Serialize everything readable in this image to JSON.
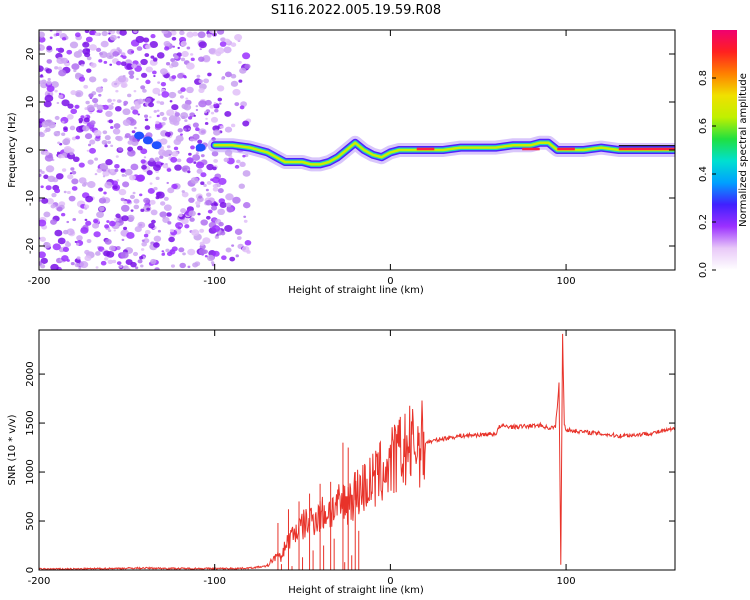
{
  "title": "S116.2022.005.19.59.R08",
  "chart_data": [
    {
      "type": "heatmap",
      "xlabel": "Height of straight line (km)",
      "ylabel": "Frequency (Hz)",
      "xlim": [
        -200,
        162
      ],
      "ylim": [
        -25,
        25
      ],
      "xticks": [
        -200,
        -100,
        0,
        100
      ],
      "yticks": [
        -20,
        -10,
        0,
        10,
        20
      ],
      "colorbar": {
        "label": "Normalized spectral amplitude",
        "range": [
          0,
          1
        ],
        "ticks": [
          0.0,
          0.2,
          0.4,
          0.6,
          0.8
        ],
        "colors": [
          "#ffffff",
          "#e8c8f8",
          "#9b30ff",
          "#4020ff",
          "#00a0ff",
          "#00e0d0",
          "#20e040",
          "#c0f000",
          "#f0e000",
          "#ff8000",
          "#ff2020",
          "#f00070"
        ]
      },
      "ridge": {
        "x": [
          -100,
          -90,
          -80,
          -70,
          -65,
          -60,
          -55,
          -50,
          -45,
          -40,
          -35,
          -30,
          -25,
          -20,
          -15,
          -10,
          -5,
          0,
          5,
          10,
          20,
          30,
          40,
          50,
          60,
          70,
          80,
          85,
          90,
          95,
          100,
          110,
          120,
          130,
          140,
          150,
          162
        ],
        "y": [
          1,
          1,
          0.5,
          -0.5,
          -1.5,
          -2.5,
          -2.5,
          -2.5,
          -3,
          -3,
          -2.5,
          -1.5,
          0,
          1.5,
          0,
          -1,
          -1.5,
          -0.5,
          0,
          0,
          0,
          0,
          0.5,
          0.5,
          0.5,
          1,
          1,
          1.5,
          1.5,
          0,
          0,
          0,
          0.5,
          0,
          0,
          0,
          0
        ]
      }
    },
    {
      "type": "line",
      "xlabel": "Height of straight line (km)",
      "ylabel": "SNR (10 * v/v)",
      "xlim": [
        -200,
        162
      ],
      "ylim": [
        0,
        2450
      ],
      "xticks": [
        -200,
        -100,
        0,
        100
      ],
      "yticks": [
        0,
        500,
        1000,
        1500,
        2000
      ],
      "color": "#e8332a",
      "x": [
        -200,
        -180,
        -160,
        -140,
        -120,
        -100,
        -90,
        -80,
        -70,
        -65,
        -62,
        -60,
        -55,
        -50,
        -45,
        -40,
        -35,
        -30,
        -25,
        -20,
        -15,
        -10,
        -5,
        0,
        5,
        10,
        15,
        20,
        30,
        40,
        50,
        60,
        62,
        65,
        70,
        80,
        85,
        90,
        94,
        96,
        97,
        98,
        99,
        100,
        105,
        110,
        120,
        130,
        140,
        150,
        162
      ],
      "y": [
        10,
        10,
        15,
        20,
        15,
        15,
        15,
        20,
        40,
        150,
        120,
        250,
        380,
        450,
        520,
        560,
        600,
        640,
        700,
        780,
        850,
        900,
        1000,
        1080,
        1180,
        1240,
        1280,
        1300,
        1340,
        1370,
        1380,
        1390,
        1460,
        1470,
        1460,
        1470,
        1480,
        1450,
        1460,
        1900,
        60,
        2420,
        1500,
        1430,
        1420,
        1410,
        1390,
        1370,
        1380,
        1400,
        1440
      ],
      "spikes": [
        {
          "x": -64,
          "y": 480
        },
        {
          "x": -62,
          "y": 60
        },
        {
          "x": -58,
          "y": 620
        },
        {
          "x": -56,
          "y": 40
        },
        {
          "x": -52,
          "y": 700
        },
        {
          "x": -50,
          "y": 130
        },
        {
          "x": -46,
          "y": 780
        },
        {
          "x": -44,
          "y": 200
        },
        {
          "x": -40,
          "y": 880
        },
        {
          "x": -38,
          "y": 250
        },
        {
          "x": -34,
          "y": 900
        },
        {
          "x": -32,
          "y": 320
        },
        {
          "x": -27,
          "y": 1300
        },
        {
          "x": -26,
          "y": 80
        },
        {
          "x": -24,
          "y": 1250
        },
        {
          "x": -22,
          "y": 150
        },
        {
          "x": -20,
          "y": 1000
        },
        {
          "x": -18,
          "y": 400
        }
      ]
    }
  ]
}
